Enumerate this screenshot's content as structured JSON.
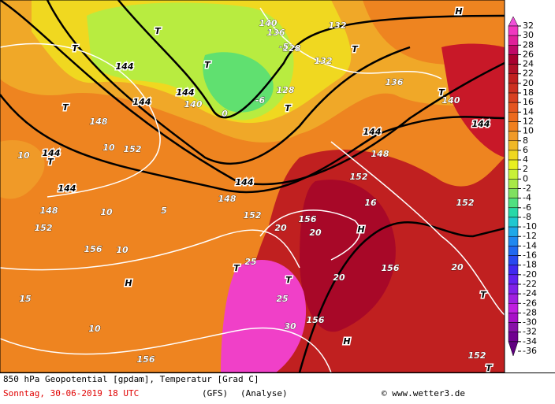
{
  "map": {
    "labels": [
      "144",
      "144",
      "144",
      "140",
      "140",
      "136",
      "128",
      "128",
      "132",
      "132",
      "136",
      "140",
      "144",
      "144",
      "148",
      "148",
      "152",
      "152",
      "152",
      "144",
      "144",
      "144",
      "148",
      "152",
      "156",
      "156",
      "156",
      "156",
      "156",
      "152",
      "148",
      "152",
      "10",
      "10",
      "10",
      "10",
      "10",
      "15",
      "20",
      "20",
      "20",
      "20",
      "25",
      "25",
      "30",
      "5",
      "0",
      "-5",
      "-6",
      "16",
      "H",
      "H",
      "H",
      "H",
      "T",
      "T",
      "T",
      "T",
      "T",
      "T",
      "T",
      "T",
      "T",
      "T",
      "T",
      "T"
    ]
  },
  "color_scale": {
    "labels": [
      32,
      30,
      28,
      26,
      24,
      22,
      20,
      18,
      16,
      14,
      12,
      10,
      8,
      6,
      4,
      2,
      0,
      -2,
      -4,
      -6,
      -8,
      -10,
      -12,
      -14,
      -16,
      -18,
      -20,
      -22,
      -24,
      -26,
      -28,
      -30,
      -32,
      -34,
      -36
    ],
    "colors": [
      "#f050d8",
      "#f038c0",
      "#e0209a",
      "#c00868",
      "#a80030",
      "#b01028",
      "#c02020",
      "#cc3020",
      "#d84020",
      "#e45520",
      "#ec6a1e",
      "#f08020",
      "#f09a28",
      "#f0b828",
      "#f0d820",
      "#e8f020",
      "#c8f038",
      "#a8e848",
      "#80e060",
      "#50e080",
      "#28d8a8",
      "#20c8d0",
      "#20a8e8",
      "#2088f0",
      "#2068f0",
      "#2848f0",
      "#4028f0",
      "#6020f0",
      "#8020e8",
      "#a020e0",
      "#c020e0",
      "#a810c8",
      "#8810a8",
      "#700090",
      "#600080"
    ]
  },
  "footer": {
    "title": "850 hPa Geopotential [gpdam], Temperatur [Grad C]",
    "date": "Sonntag, 30-06-2019  18 UTC",
    "model": "(GFS)",
    "run": "(Analyse)",
    "credit": "© www.wetter3.de"
  }
}
